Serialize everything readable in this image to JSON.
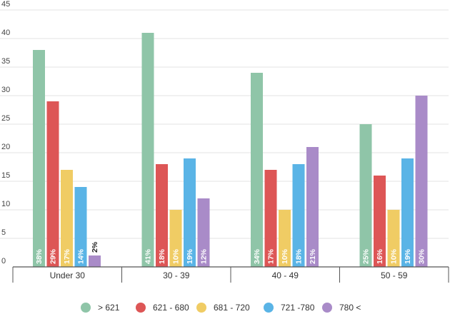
{
  "chart_data": {
    "type": "bar",
    "title": "",
    "xlabel": "",
    "ylabel": "",
    "ylim": [
      0,
      45
    ],
    "yticks": [
      0,
      5,
      10,
      15,
      20,
      25,
      30,
      35,
      40,
      45
    ],
    "grid": true,
    "legend_position": "bottom",
    "categories": [
      "Under 30",
      "30 - 39",
      "40 - 49",
      "50 - 59"
    ],
    "series": [
      {
        "name": "> 621",
        "color": "#8fc5a8",
        "values": [
          38,
          41,
          34,
          25
        ],
        "labels": [
          "38%",
          "41%",
          "34%",
          "25%"
        ]
      },
      {
        "name": "621 - 680",
        "color": "#dd5656",
        "values": [
          29,
          18,
          17,
          16
        ],
        "labels": [
          "29%",
          "18%",
          "17%",
          "16%"
        ]
      },
      {
        "name": "681 - 720",
        "color": "#f0cc64",
        "values": [
          17,
          10,
          10,
          10
        ],
        "labels": [
          "17%",
          "10%",
          "10%",
          "10%"
        ]
      },
      {
        "name": "721 -780",
        "color": "#5ab4e6",
        "values": [
          14,
          19,
          18,
          19
        ],
        "labels": [
          "14%",
          "19%",
          "18%",
          "19%"
        ]
      },
      {
        "name": "780 <",
        "color": "#a98bc8",
        "values": [
          2,
          12,
          21,
          30
        ],
        "labels": [
          "2%",
          "12%",
          "21%",
          "30%"
        ]
      }
    ]
  }
}
